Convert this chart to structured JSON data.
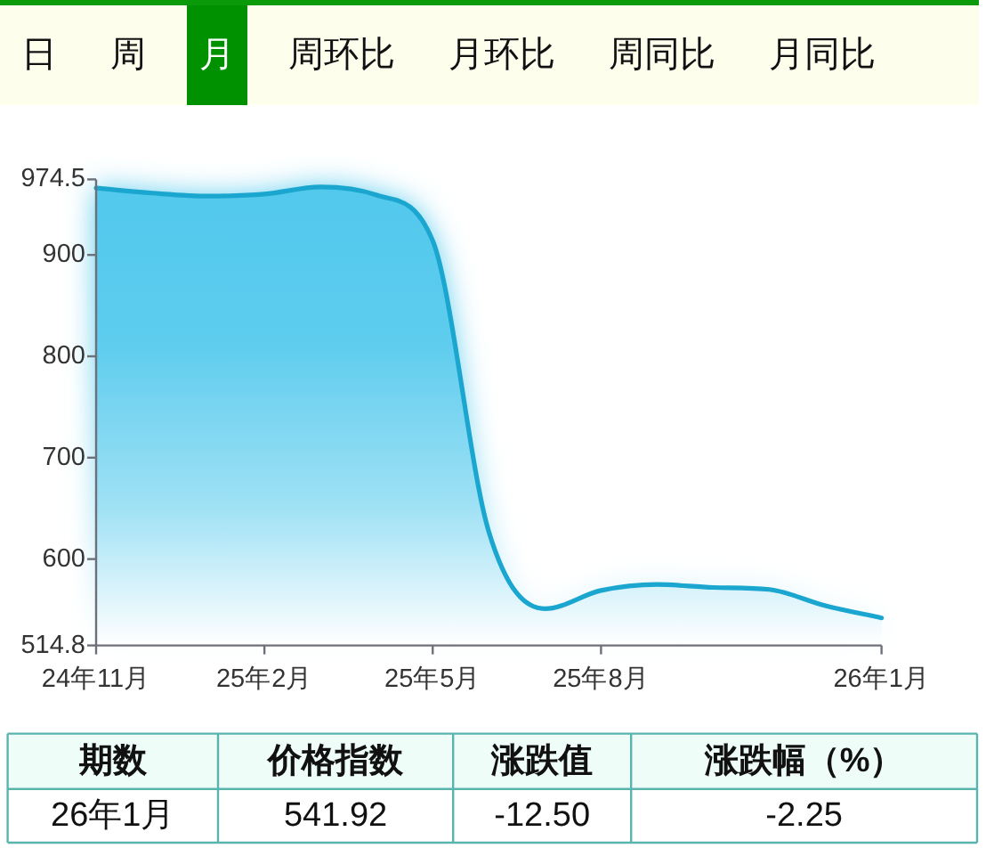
{
  "chart_data": [
    {
      "type": "other",
      "categories": [
        "日",
        "周",
        "月",
        "周环比",
        "月环比",
        "周同比",
        "月同比"
      ],
      "colors": [
        "#fdfeec",
        "#fdfeec",
        "#009100",
        "#fdfeec",
        "#fdfeec",
        "#fdfeec",
        "#fdfeec"
      ]
    },
    {
      "type": "area",
      "categories": [
        "24年11月",
        null,
        null,
        "25年2月",
        null,
        null,
        "25年5月",
        null,
        null,
        "25年8月",
        null,
        null,
        null,
        null,
        "26年1月"
      ],
      "series": [
        {
          "color": "#1ba6d0",
          "values": [
            966,
            961,
            958,
            960,
            967,
            959,
            914,
            627,
            551,
            569,
            575,
            572,
            570,
            554,
            541.92
          ]
        }
      ],
      "ylim": [
        514.8,
        974.5
      ],
      "yticks": [
        514.8,
        600,
        700,
        800,
        900,
        974.5
      ]
    },
    {
      "type": "other",
      "categories": [
        "期数",
        "价格指数",
        "涨跌值",
        "涨跌幅（%）"
      ],
      "annotations": [
        "26年1月",
        "541.92",
        "-12.50",
        "-2.25"
      ]
    }
  ]
}
